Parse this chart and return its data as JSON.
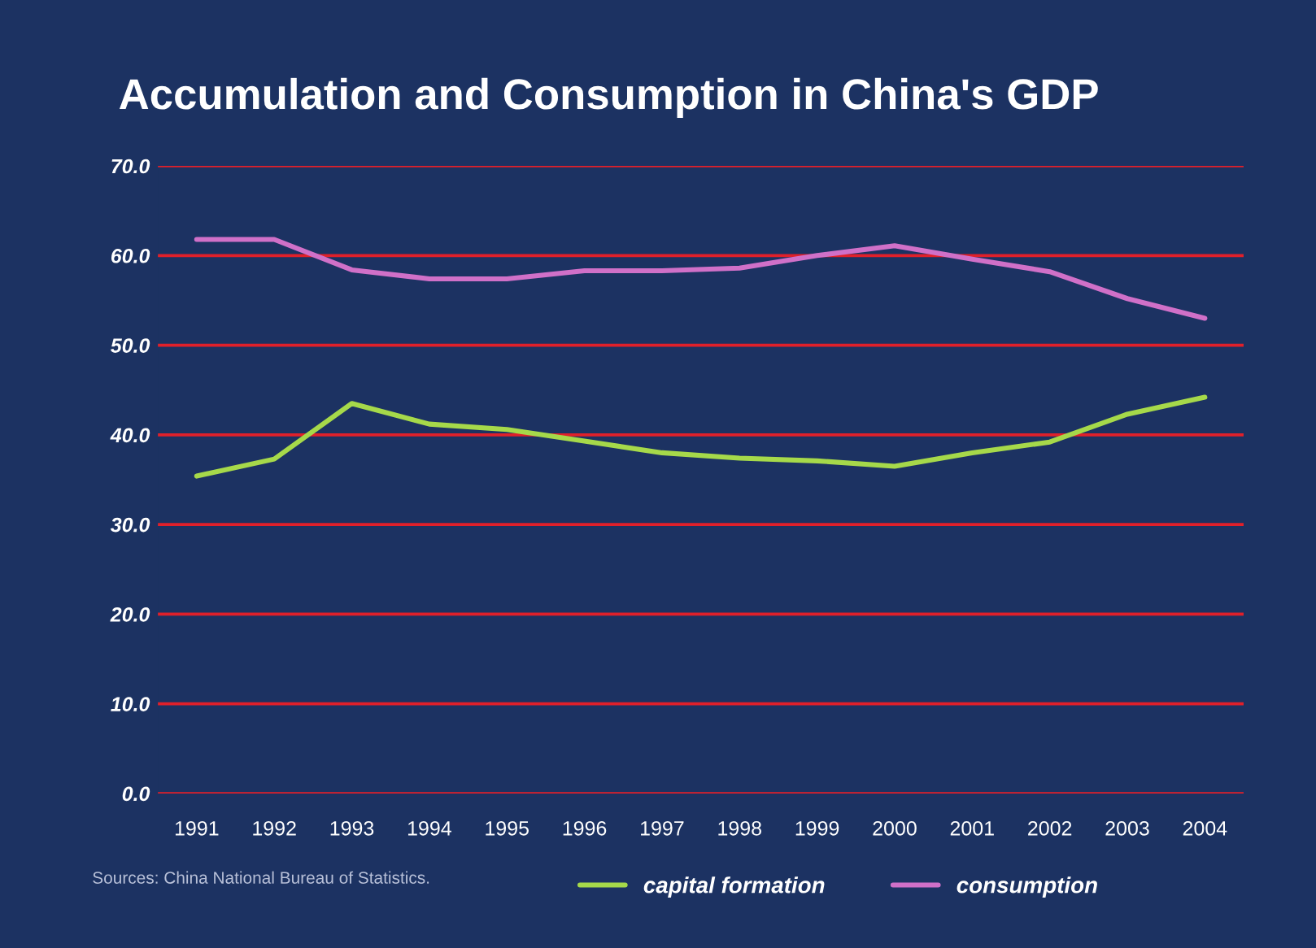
{
  "chart_data": {
    "type": "line",
    "title": "Accumulation and Consumption in China's GDP",
    "categories": [
      "1991",
      "1992",
      "1993",
      "1994",
      "1995",
      "1996",
      "1997",
      "1998",
      "1999",
      "2000",
      "2001",
      "2002",
      "2003",
      "2004"
    ],
    "series": [
      {
        "name": "capital formation",
        "color": "#a6d94a",
        "values": [
          35.4,
          37.3,
          43.5,
          41.2,
          40.6,
          39.3,
          38.0,
          37.4,
          37.1,
          36.5,
          38.0,
          39.2,
          42.3,
          44.2
        ]
      },
      {
        "name": "consumption",
        "color": "#d070c8",
        "values": [
          61.8,
          61.8,
          58.4,
          57.4,
          57.4,
          58.3,
          58.3,
          58.6,
          60.0,
          61.1,
          59.6,
          58.2,
          55.2,
          53.0
        ]
      }
    ],
    "ylim": [
      0,
      70
    ],
    "yticks": [
      {
        "value": 0,
        "label": "0.0"
      },
      {
        "value": 10,
        "label": "10.0"
      },
      {
        "value": 20,
        "label": "20.0"
      },
      {
        "value": 30,
        "label": "30.0"
      },
      {
        "value": 40,
        "label": "40.0"
      },
      {
        "value": 50,
        "label": "50.0"
      },
      {
        "value": 60,
        "label": "60.0"
      },
      {
        "value": 70,
        "label": "70.0"
      }
    ],
    "grid": "y",
    "legend": "bottom",
    "marker": "none",
    "line_style": "solid",
    "annotations": [
      "Sources: China National Bureau of Statistics."
    ]
  }
}
